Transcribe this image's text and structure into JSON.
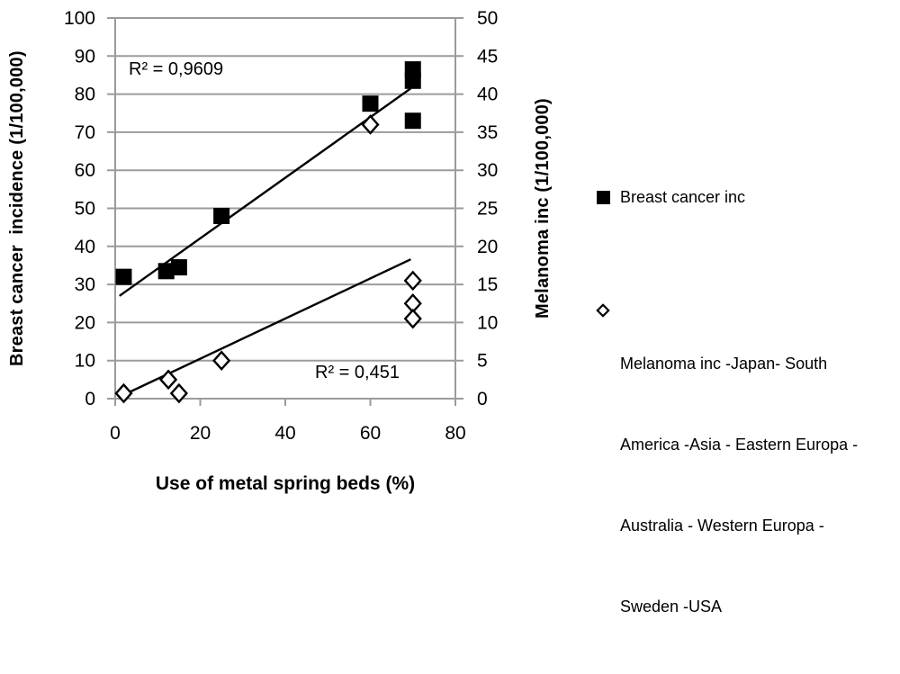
{
  "chart_data": {
    "type": "scatter",
    "title": "",
    "xlabel": "Use of metal spring beds (%)",
    "ylabel_left": "Breast cancer  incidence (1/100,000)",
    "ylabel_right": "Melanoma inc (1/100,000)",
    "xlim": [
      0,
      80
    ],
    "ylim_left": [
      0,
      100
    ],
    "ylim_right": [
      0,
      50
    ],
    "x_ticks": [
      0,
      20,
      40,
      60,
      80
    ],
    "y_ticks_left": [
      0,
      10,
      20,
      30,
      40,
      50,
      60,
      70,
      80,
      90,
      100
    ],
    "y_ticks_right": [
      0,
      5,
      10,
      15,
      20,
      25,
      30,
      35,
      40,
      45,
      50
    ],
    "grid": "horizontal",
    "legend_position": "right",
    "colors": {
      "marker": "#000000",
      "grid": "#9b9b9b",
      "text": "#000000",
      "background": "#ffffff"
    },
    "series": [
      {
        "name": "Breast cancer inc",
        "axis": "left",
        "marker": "filled-square",
        "points": [
          [
            2,
            32
          ],
          [
            12,
            33.5
          ],
          [
            15,
            34.5
          ],
          [
            25,
            48
          ],
          [
            60,
            77.5
          ],
          [
            70,
            86.5
          ],
          [
            70,
            83.5
          ],
          [
            70,
            73
          ]
        ],
        "trendline": {
          "x_start": 1,
          "y_start": 27,
          "x_end": 69.5,
          "y_end": 81.5
        },
        "r2_label": "R² = 0,9609"
      },
      {
        "name": "Melanoma inc -Japan- South America -Asia - Eastern Europa - Australia - Western Europa - Sweden -USA",
        "axis": "right",
        "marker": "open-diamond",
        "points": [
          [
            2,
            0.7
          ],
          [
            12.5,
            2.5
          ],
          [
            15,
            0.7
          ],
          [
            25,
            5
          ],
          [
            60,
            36
          ],
          [
            70,
            15.5
          ],
          [
            70,
            12.5
          ],
          [
            70,
            10.5
          ]
        ],
        "trendline": {
          "x_start": 2,
          "y_start": 0.5,
          "x_end": 69.5,
          "y_end": 18.3
        },
        "r2_label": "R² = 0,451"
      }
    ]
  },
  "legend": {
    "items": [
      {
        "label": "Breast cancer inc",
        "marker": "filled-square"
      },
      {
        "marker": "open-diamond",
        "lines": [
          "Melanoma inc -Japan- South",
          "America -Asia - Eastern Europa -",
          "Australia - Western Europa -",
          "Sweden -USA"
        ]
      }
    ]
  }
}
